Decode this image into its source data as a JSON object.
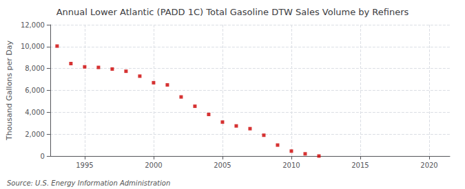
{
  "chart_data": {
    "type": "scatter",
    "title": "Annual Lower Atlantic (PADD 1C) Total Gasoline DTW Sales Volume by Refiners",
    "ylabel": "Thousand Gallons per Day",
    "annotations": [
      "Source: U.S. Energy Information Administration"
    ],
    "x": [
      1993,
      1994,
      1995,
      1996,
      1997,
      1998,
      1999,
      2000,
      2001,
      2002,
      2003,
      2004,
      2005,
      2006,
      2007,
      2008,
      2009,
      2010,
      2011,
      2012
    ],
    "values": [
      10050,
      8450,
      8150,
      8100,
      7950,
      7750,
      7300,
      6700,
      6500,
      5400,
      4550,
      3800,
      3100,
      2750,
      2500,
      1900,
      1000,
      450,
      200,
      0
    ],
    "color": "#cc0000",
    "marker": "square",
    "xlim": [
      1992.5,
      2021.5
    ],
    "ylim": [
      0,
      12000
    ],
    "xticks": [
      1995,
      2000,
      2005,
      2010,
      2015,
      2020
    ],
    "yticks": [
      0,
      {
        "value": 2000,
        "label": "2,000"
      },
      {
        "value": 4000,
        "label": "4,000"
      },
      {
        "value": 6000,
        "label": "6,000"
      },
      {
        "value": 8000,
        "label": "8,000"
      },
      {
        "value": 10000,
        "label": "10,000"
      },
      {
        "value": 12000,
        "label": "12,000"
      }
    ],
    "grid": true
  }
}
